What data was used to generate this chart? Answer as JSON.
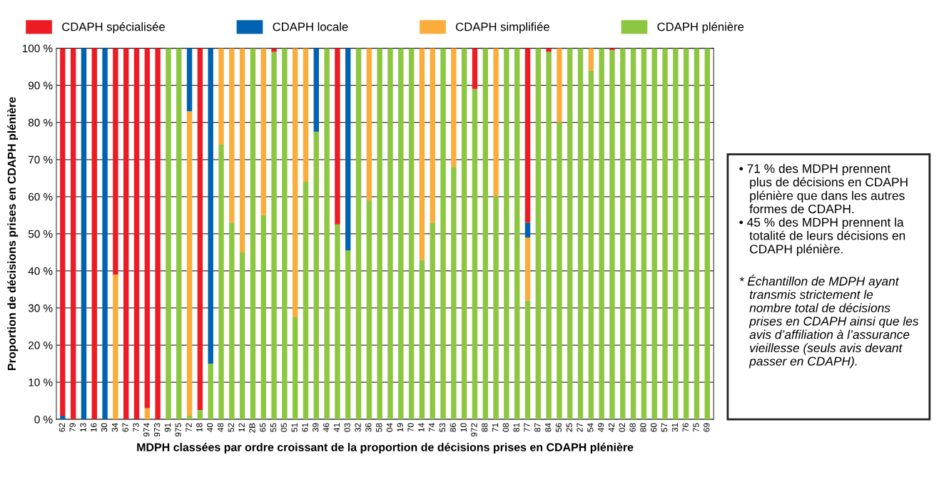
{
  "chart_data": {
    "type": "bar",
    "stacked": true,
    "categories": [
      "62",
      "79",
      "13",
      "16",
      "30",
      "34",
      "67",
      "73",
      "974",
      "973",
      "91",
      "975",
      "72",
      "18",
      "40",
      "48",
      "52",
      "12",
      "2B",
      "65",
      "55",
      "05",
      "51",
      "61",
      "39",
      "46",
      "41",
      "03",
      "32",
      "36",
      "58",
      "04",
      "19",
      "70",
      "14",
      "74",
      "53",
      "86",
      "10",
      "972",
      "88",
      "71",
      "08",
      "81",
      "77",
      "87",
      "84",
      "56",
      "25",
      "27",
      "54",
      "49",
      "42",
      "02",
      "68",
      "80",
      "60",
      "57",
      "31",
      "76",
      "75",
      "69"
    ],
    "series": [
      {
        "name": "CDAPH plénière",
        "color": "#8dc63f",
        "values": [
          0,
          0,
          0,
          0,
          0,
          0,
          0,
          0,
          0,
          0,
          100,
          100,
          1,
          2.5,
          15,
          74,
          53,
          45,
          100,
          55,
          99,
          100,
          27.5,
          64,
          77.5,
          100,
          52.5,
          45.5,
          100,
          59,
          100,
          100,
          100,
          100,
          43,
          53,
          100,
          68,
          100,
          89,
          100,
          60,
          100,
          100,
          32,
          100,
          99,
          80,
          100,
          100,
          94,
          100,
          99.5,
          100,
          100,
          100,
          100,
          100,
          100,
          100,
          100,
          100
        ]
      },
      {
        "name": "CDAPH simplifiée",
        "color": "#fbad3b",
        "values": [
          0,
          0,
          0,
          0,
          0,
          39,
          0,
          0,
          3,
          0,
          0,
          0,
          82,
          0,
          0,
          26,
          47,
          55,
          0,
          45,
          0,
          0,
          72.5,
          36,
          0,
          0,
          0,
          0,
          0,
          41,
          0,
          0,
          0,
          0,
          57,
          47,
          0,
          32,
          0,
          0,
          0,
          40,
          0,
          0,
          17,
          0,
          0,
          20,
          0,
          0,
          6,
          0,
          0,
          0,
          0,
          0,
          0,
          0,
          0,
          0,
          0,
          0
        ]
      },
      {
        "name": "CDAPH locale",
        "color": "#0063b1",
        "values": [
          1,
          0,
          100,
          0,
          100,
          0,
          0,
          0,
          0,
          0,
          0,
          0,
          17,
          0,
          85,
          0,
          0,
          0,
          0,
          0,
          0,
          0,
          0,
          0,
          22.5,
          0,
          0,
          54.5,
          0,
          0,
          0,
          0,
          0,
          0,
          0,
          0,
          0,
          0,
          0,
          0,
          0,
          0,
          0,
          0,
          4,
          0,
          0,
          0,
          0,
          0,
          0,
          0,
          0,
          0,
          0,
          0,
          0,
          0,
          0,
          0,
          0,
          0
        ]
      },
      {
        "name": "CDAPH spécialisée",
        "color": "#ed1c24",
        "values": [
          99,
          100,
          0,
          100,
          0,
          61,
          100,
          100,
          97,
          100,
          0,
          0,
          0,
          97.5,
          0,
          0,
          0,
          0,
          0,
          0,
          1,
          0,
          0,
          0,
          0,
          0,
          47.5,
          0,
          0,
          0,
          0,
          0,
          0,
          0,
          0,
          0,
          0,
          0,
          0,
          11,
          0,
          0,
          0,
          0,
          47,
          0,
          1,
          0,
          0,
          0,
          0,
          0,
          0.5,
          0,
          0,
          0,
          0,
          0,
          0,
          0,
          0,
          0
        ]
      }
    ],
    "ylim": [
      0,
      100
    ],
    "yticks": [
      {
        "value": 0,
        "label": "0 %"
      },
      {
        "value": 10,
        "label": "10 %"
      },
      {
        "value": 20,
        "label": "20 %"
      },
      {
        "value": 30,
        "label": "30 %"
      },
      {
        "value": 40,
        "label": "40 %"
      },
      {
        "value": 50,
        "label": "50 %"
      },
      {
        "value": 60,
        "label": "60 %"
      },
      {
        "value": 70,
        "label": "70 %"
      },
      {
        "value": 80,
        "label": "80 %"
      },
      {
        "value": 90,
        "label": "90 %"
      },
      {
        "value": 100,
        "label": "100 %"
      }
    ],
    "grid": "y",
    "legend": "top",
    "xlabel": "MDPH classées par ordre croissant de la proportion de décisions prises en CDAPH plénière",
    "ylabel": "Proportion de décisions prises en CDAPH plénière",
    "annotations": [
      "• 71 % des MDPH prennent\n   plus de décisions en CDAPH\n   plénière que dans les autres\n   formes de CDAPH.\n• 45 % des MDPH prennent la\n   totalité de leurs décisions en\n   CDAPH plénière.",
      "* Échantillon de MDPH ayant\n   transmis strictement le\n   nombre total de décisions\n   prises en CDAPH ainsi que les\n   avis d’affiliation à l’assurance\n   vieillesse (seuls avis devant\n   passer en CDAPH)."
    ]
  }
}
